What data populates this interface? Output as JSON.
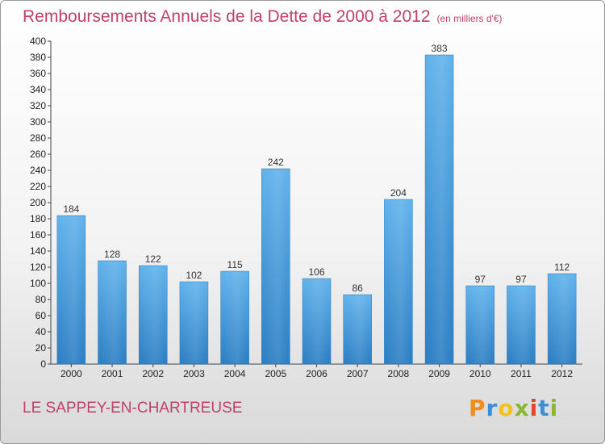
{
  "header": {
    "title": "Remboursements Annuels de la Dette de 2000 à 2012",
    "unit": "(en milliers d'€)"
  },
  "footer": {
    "location": "LE SAPPEY-EN-CHARTREUSE",
    "logo_letters": [
      {
        "char": "P",
        "color": "#f28c1b"
      },
      {
        "char": "r",
        "color": "#3d8fd6"
      },
      {
        "char": "o",
        "color": "#f2c31b"
      },
      {
        "char": "x",
        "color": "#8ab833"
      },
      {
        "char": "i",
        "color": "#e2452c"
      },
      {
        "char": "t",
        "color": "#3d8fd6"
      },
      {
        "char": "i",
        "color": "#8ab833"
      }
    ]
  },
  "chart_data": {
    "type": "bar",
    "title": "Remboursements Annuels de la Dette de 2000 à 2012",
    "xlabel": "",
    "ylabel": "",
    "categories": [
      "2000",
      "2001",
      "2002",
      "2003",
      "2004",
      "2005",
      "2006",
      "2007",
      "2008",
      "2009",
      "2010",
      "2011",
      "2012"
    ],
    "values": [
      184,
      128,
      122,
      102,
      115,
      242,
      106,
      86,
      204,
      383,
      97,
      97,
      112
    ],
    "ylim": [
      0,
      400
    ],
    "ytick_step": 20,
    "grid": false,
    "legend": "none",
    "bar_color_top": "#62b3ec",
    "bar_color_bottom": "#2d7fc4"
  }
}
